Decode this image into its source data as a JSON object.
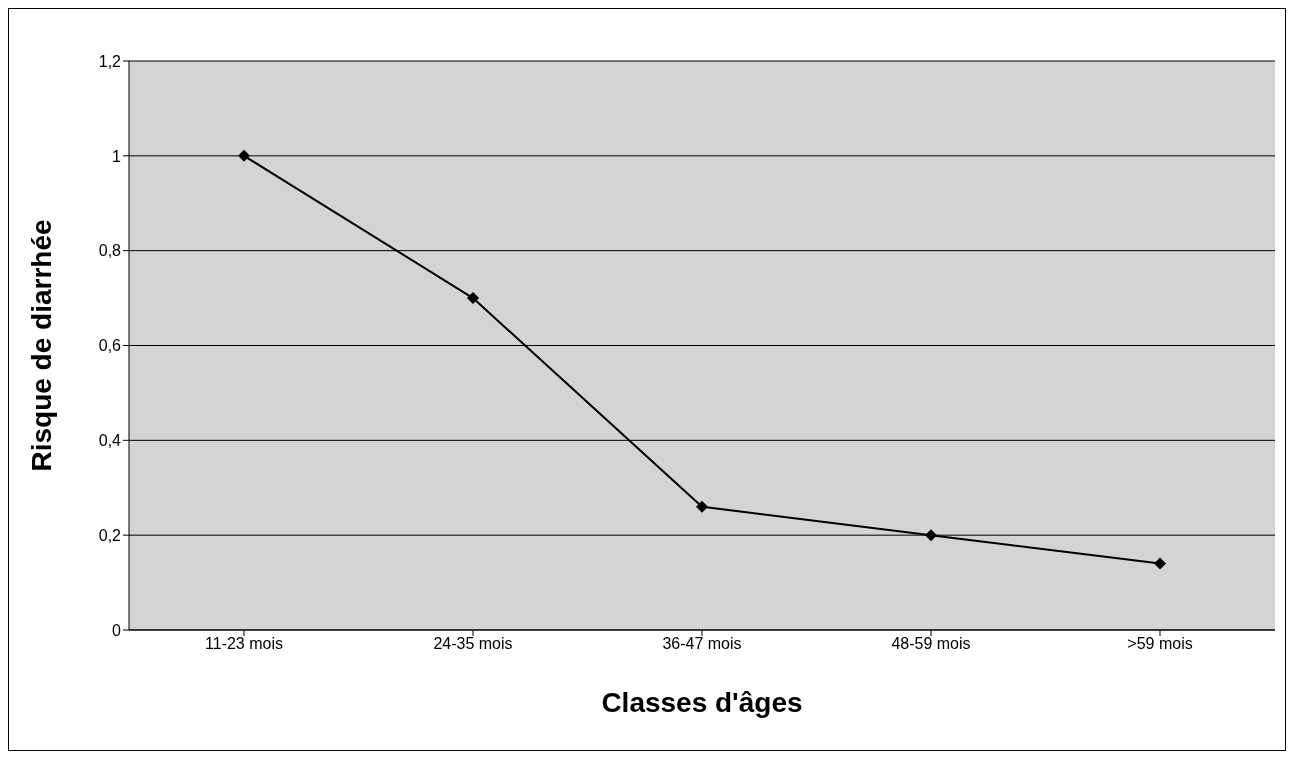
{
  "chart_data": {
    "type": "line",
    "xlabel": "Classes d'âges",
    "ylabel": "Risque de diarrhée",
    "categories": [
      "11-23 mois",
      "24-35 mois",
      "36-47 mois",
      "48-59 mois",
      ">59 mois"
    ],
    "series": [
      {
        "color": "#000000",
        "values": [
          1,
          0.7,
          0.26,
          0.2,
          0.14
        ]
      }
    ],
    "ylim": [
      0,
      1.2
    ],
    "yticks": [
      0,
      {
        "value": 0.2,
        "label": "0,2"
      },
      {
        "value": 0.4,
        "label": "0,4"
      },
      {
        "value": 0.6,
        "label": "0,6"
      },
      {
        "value": 0.8,
        "label": "0,8"
      },
      1,
      {
        "value": 1.2,
        "label": "1,2"
      }
    ],
    "grid": "y",
    "legend": false,
    "marker": "diamond",
    "line_style": "solid"
  }
}
